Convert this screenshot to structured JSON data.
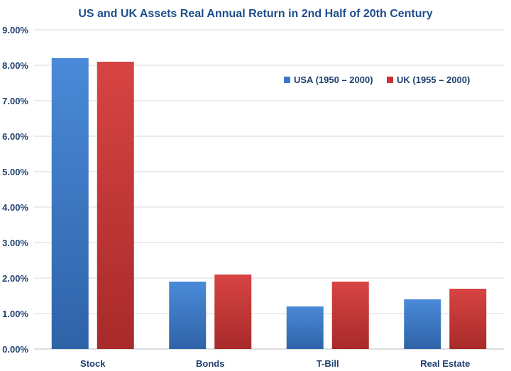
{
  "chart_data": {
    "type": "bar",
    "title": "US and UK Assets Real Annual Return in 2nd Half of 20th Century",
    "xlabel": "",
    "ylabel": "",
    "categories": [
      "Stock",
      "Bonds",
      "T-Bill",
      "Real Estate"
    ],
    "series": [
      {
        "name": "USA (1950 – 2000)",
        "values": [
          8.2,
          1.9,
          1.2,
          1.4
        ],
        "color": "#3b78c8"
      },
      {
        "name": "UK (1955 – 2000)",
        "values": [
          8.1,
          2.1,
          1.9,
          1.7
        ],
        "color": "#c83434"
      }
    ],
    "ylim": [
      0,
      9
    ],
    "yticks": [
      "0.00%",
      "1.00%",
      "2.00%",
      "3.00%",
      "4.00%",
      "5.00%",
      "6.00%",
      "7.00%",
      "8.00%",
      "9.00%"
    ],
    "grid": true,
    "legend_position": "top-right"
  }
}
